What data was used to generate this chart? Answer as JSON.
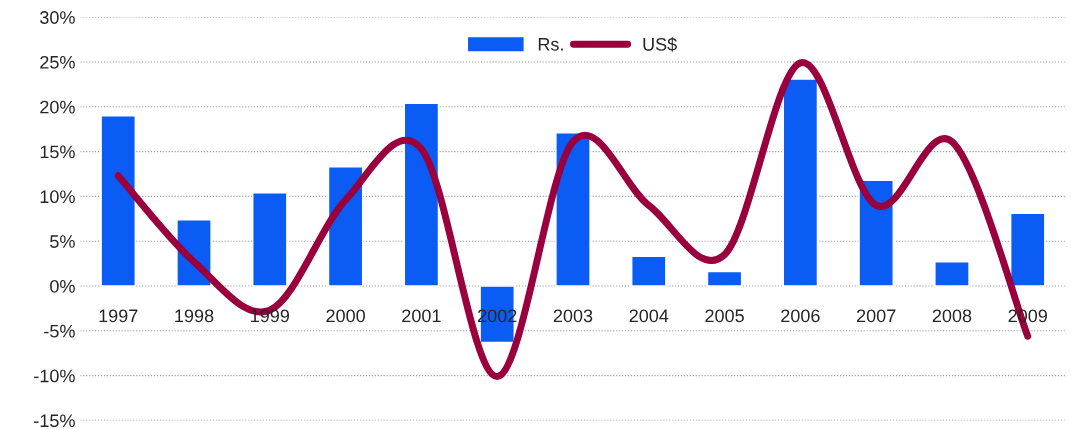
{
  "chart_data": {
    "type": "bar",
    "categories": [
      "1997",
      "1998",
      "1999",
      "2000",
      "2001",
      "2002",
      "2003",
      "2004",
      "2005",
      "2006",
      "2007",
      "2008",
      "2009"
    ],
    "series": [
      {
        "name": "Rs.",
        "color": "#0a5cf5",
        "values": [
          19.0,
          7.4,
          10.4,
          13.3,
          20.4,
          -6.3,
          17.1,
          3.3,
          1.6,
          23.1,
          11.8,
          2.7,
          8.1
        ]
      },
      {
        "name": "US$",
        "type": "line",
        "color": "#99003d",
        "values": [
          12.3,
          2.7,
          -2.7,
          9.6,
          15.3,
          -10.1,
          16.1,
          9.0,
          3.5,
          24.9,
          9.0,
          16.1,
          -5.6
        ]
      }
    ],
    "ylim": [
      -15,
      30
    ],
    "yticks": [
      {
        "value": -15,
        "label": "-15%"
      },
      {
        "value": -10,
        "label": "-10%"
      },
      {
        "value": -5,
        "label": "-5%"
      },
      {
        "value": 0,
        "label": "0%"
      },
      {
        "value": 5,
        "label": "5%"
      },
      {
        "value": 10,
        "label": "10%"
      },
      {
        "value": 15,
        "label": "15%"
      },
      {
        "value": 20,
        "label": "20%"
      },
      {
        "value": 25,
        "label": "25%"
      },
      {
        "value": 30,
        "label": "30%"
      }
    ],
    "grid": "y",
    "legend": "top",
    "marker": "none",
    "line_style": "solid"
  }
}
